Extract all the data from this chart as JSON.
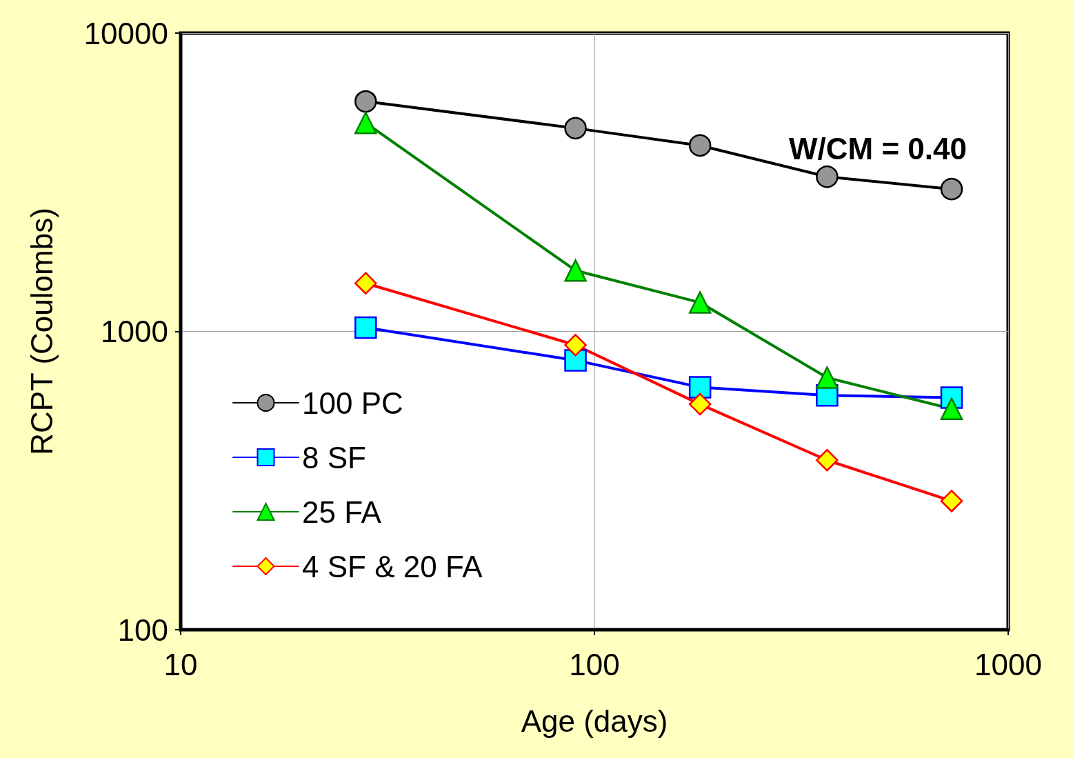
{
  "chart_data": {
    "type": "line",
    "xlabel": "Age (days)",
    "ylabel": "RCPT (Coulombs)",
    "log": "xy",
    "x": [
      28,
      90,
      180,
      365,
      730
    ],
    "xlim": [
      10,
      1000
    ],
    "xticks": [
      10,
      100,
      1000
    ],
    "ylim": [
      100,
      10000
    ],
    "yticks": [
      100,
      1000,
      10000
    ],
    "grid": true,
    "legend": "bottom left",
    "annotations": [
      "W/CM = 0.40"
    ],
    "series": [
      {
        "name": "100 PC",
        "color": "#000000",
        "colors": [
          "#969696",
          "#969696",
          "#969696",
          "#969696",
          "#969696"
        ],
        "marker": "circle",
        "values": [
          5900,
          4800,
          4200,
          3300,
          3000
        ]
      },
      {
        "name": "8 SF",
        "color": "#0000ff",
        "colors": [
          "#00ffff",
          "#00ffff",
          "#00ffff",
          "#00ffff",
          "#00ffff"
        ],
        "marker": "square",
        "values": [
          1030,
          800,
          650,
          610,
          600
        ]
      },
      {
        "name": "25 FA",
        "color": "#008000",
        "colors": [
          "#00ff00",
          "#00ff00",
          "#00ff00",
          "#00ff00",
          "#00ff00"
        ],
        "marker": "triangle",
        "values": [
          5000,
          1600,
          1250,
          700,
          550
        ]
      },
      {
        "name": "4 SF & 20 FA",
        "color": "#ff0000",
        "colors": [
          "#ffff00",
          "#ffff00",
          "#ffff00",
          "#ffff00",
          "#ffff00"
        ],
        "marker": "diamond",
        "values": [
          1450,
          900,
          570,
          370,
          270
        ]
      }
    ]
  }
}
